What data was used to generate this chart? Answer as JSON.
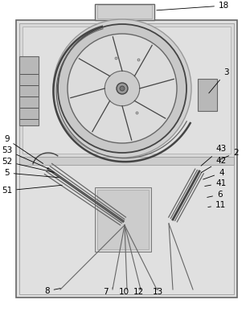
{
  "bg_color": "#ffffff",
  "outer_fill": "#e8e8e8",
  "inner_fill": "#ebebeb",
  "upper_fill": "#dcdcdc",
  "lower_fill": "#e4e4e4",
  "lc": "#999999",
  "dc": "#444444",
  "mc": "#666666",
  "figsize": [
    3.11,
    3.88
  ],
  "dpi": 100,
  "font_s": 7.5
}
